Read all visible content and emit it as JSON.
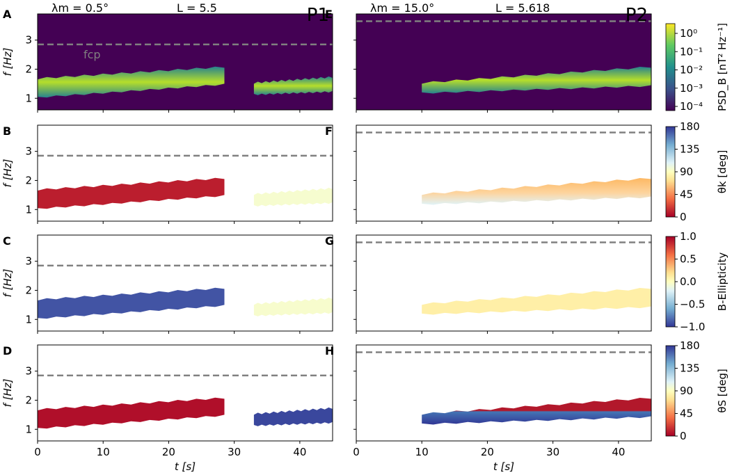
{
  "chart_data": {
    "type": "heatmap",
    "columns": [
      {
        "id": "P1",
        "label": "P1",
        "lambda_label": "λm = 0.5°",
        "L_label": "L = 5.5",
        "fcp_hz": 2.85,
        "fcp_label": "fcp",
        "bursts": [
          {
            "t0": 0,
            "t1": 28.5,
            "f_lo_start": 1.05,
            "f_lo_end": 1.5,
            "f_hi_start": 1.65,
            "f_hi_end": 2.05
          },
          {
            "t0": 33,
            "t1": 45,
            "f_lo_start": 1.15,
            "f_lo_end": 1.25,
            "f_hi_start": 1.5,
            "f_hi_end": 1.7
          }
        ]
      },
      {
        "id": "P2",
        "label": "P2",
        "lambda_label": "λm = 15.0°",
        "L_label": "L = 5.618",
        "fcp_hz": 3.65,
        "bursts": [
          {
            "t0": 10,
            "t1": 45,
            "f_lo_start": 1.2,
            "f_lo_end": 1.45,
            "f_hi_start": 1.5,
            "f_hi_end": 2.05
          }
        ]
      }
    ],
    "rows": [
      {
        "id": "psd",
        "panels": [
          "A",
          "E"
        ],
        "colorbar_label": "PSD_B [nT² Hz⁻¹]",
        "scale": "log",
        "ticks": [
          "10⁰",
          "10⁻¹",
          "10⁻²",
          "10⁻³",
          "10⁻⁴"
        ],
        "cmap": "viridis",
        "range": [
          0.0001,
          5
        ]
      },
      {
        "id": "theta_k",
        "panels": [
          "B",
          "F"
        ],
        "colorbar_label": "θk [deg]",
        "ticks": [
          "180",
          "135",
          "90",
          "45",
          "0"
        ],
        "cmap": "RdYlBu",
        "range": [
          0,
          180
        ],
        "values": {
          "P1": [
            10,
            95
          ],
          "P2": [
            40,
            90
          ]
        }
      },
      {
        "id": "ellipticity",
        "panels": [
          "C",
          "G"
        ],
        "colorbar_label": "B-Ellipticity",
        "ticks": [
          "1.0",
          "0.5",
          "0.0",
          "−0.5",
          "−1.0"
        ],
        "cmap": "RdYlBu_r",
        "range": [
          -1,
          1
        ],
        "values": {
          "P1": [
            -0.9,
            -0.05
          ],
          "P2": [
            0.1,
            0.0
          ]
        }
      },
      {
        "id": "theta_s",
        "panels": [
          "D",
          "H"
        ],
        "colorbar_label": "θS [deg]",
        "ticks": [
          "180",
          "135",
          "90",
          "45",
          "0"
        ],
        "cmap": "RdYlBu",
        "range": [
          0,
          180
        ],
        "values": {
          "P1": [
            5,
            175
          ],
          "P2": [
            5,
            175
          ]
        }
      }
    ],
    "xlabel": "t [s]",
    "ylabel": "f [Hz]",
    "x_ticks": [
      "0",
      "10",
      "20",
      "30",
      "40"
    ],
    "y_ticks": [
      "1",
      "2",
      "3"
    ],
    "xlim": [
      0,
      45
    ],
    "ylim": [
      0.6,
      3.9
    ]
  }
}
